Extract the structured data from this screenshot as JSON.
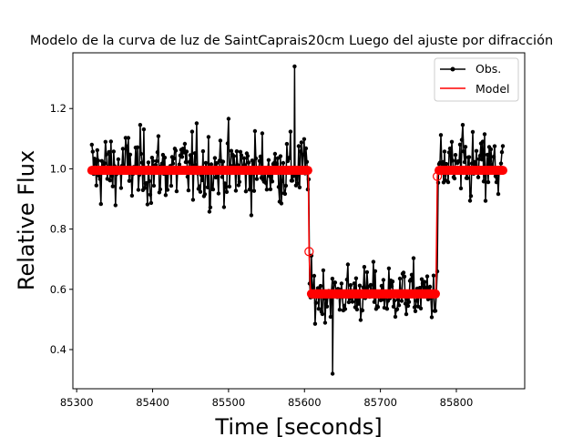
{
  "chart_data": {
    "type": "line",
    "title": "Modelo de la curva de luz de SaintCaprais20cm Luego del ajuste por difracción",
    "xlabel": "Time [seconds]",
    "ylabel": "Relative Flux",
    "xlim": [
      85295,
      85890
    ],
    "ylim": [
      0.27,
      1.385
    ],
    "xticks": [
      85300,
      85400,
      85500,
      85600,
      85700,
      85800
    ],
    "yticks": [
      0.4,
      0.6,
      0.8,
      1.0,
      1.2
    ],
    "ytick_labels": [
      "0.4",
      "0.6",
      "0.8",
      "1.0",
      "1.2"
    ],
    "grid": false,
    "legend": {
      "position": "top-right",
      "entries": [
        "Obs.",
        "Model"
      ]
    },
    "colors": {
      "obs": "#000000",
      "model": "#ff0000"
    },
    "obs_summary": {
      "x_start": 85320,
      "x_end": 85862,
      "step": 1.2,
      "baseline_level": 1.0,
      "baseline_scatter": 0.085,
      "dip_level": 0.585,
      "dip_scatter": 0.065,
      "ingress_time": 85606,
      "egress_time": 85775,
      "max_point": [
        85587,
        1.34
      ],
      "min_point": [
        85637,
        0.32
      ]
    },
    "series": [
      {
        "name": "Model",
        "x": [
          85320,
          85605,
          85606,
          85608,
          85773,
          85775,
          85776,
          85862
        ],
        "y": [
          0.995,
          0.995,
          0.725,
          0.585,
          0.585,
          0.975,
          0.995,
          0.995
        ]
      }
    ]
  }
}
